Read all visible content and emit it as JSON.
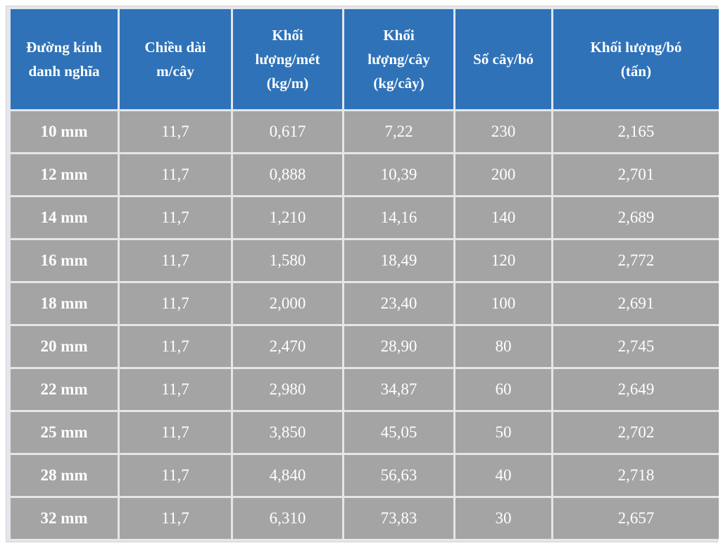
{
  "table": {
    "headers": [
      [
        "Đường kính",
        "danh nghĩa"
      ],
      [
        "Chiều dài",
        "m/cây"
      ],
      [
        "Khối",
        "lượng/mét",
        "(kg/m)"
      ],
      [
        "Khối",
        "lượng/cây",
        "(kg/cây)"
      ],
      [
        "Số cây/bó"
      ],
      [
        "Khối lượng/bó",
        "(tấn)"
      ]
    ],
    "rows": [
      [
        "10 mm",
        "11,7",
        "0,617",
        "7,22",
        "230",
        "2,165"
      ],
      [
        "12 mm",
        "11,7",
        "0,888",
        "10,39",
        "200",
        "2,701"
      ],
      [
        "14 mm",
        "11,7",
        "1,210",
        "14,16",
        "140",
        "2,689"
      ],
      [
        "16 mm",
        "11,7",
        "1,580",
        "18,49",
        "120",
        "2,772"
      ],
      [
        "18 mm",
        "11,7",
        "2,000",
        "23,40",
        "100",
        "2,691"
      ],
      [
        "20 mm",
        "11,7",
        "2,470",
        "28,90",
        "80",
        "2,745"
      ],
      [
        "22 mm",
        "11,7",
        "2,980",
        "34,87",
        "60",
        "2,649"
      ],
      [
        "25 mm",
        "11,7",
        "3,850",
        "45,05",
        "50",
        "2,702"
      ],
      [
        "28 mm",
        "11,7",
        "4,840",
        "56,63",
        "40",
        "2,718"
      ],
      [
        "32 mm",
        "11,7",
        "6,310",
        "73,83",
        "30",
        "2,657"
      ]
    ]
  },
  "colors": {
    "header_bg": "#2f72b8",
    "cell_bg": "#a4a4a4",
    "frame_bg": "#e4e6ea",
    "text": "#ffffff"
  }
}
